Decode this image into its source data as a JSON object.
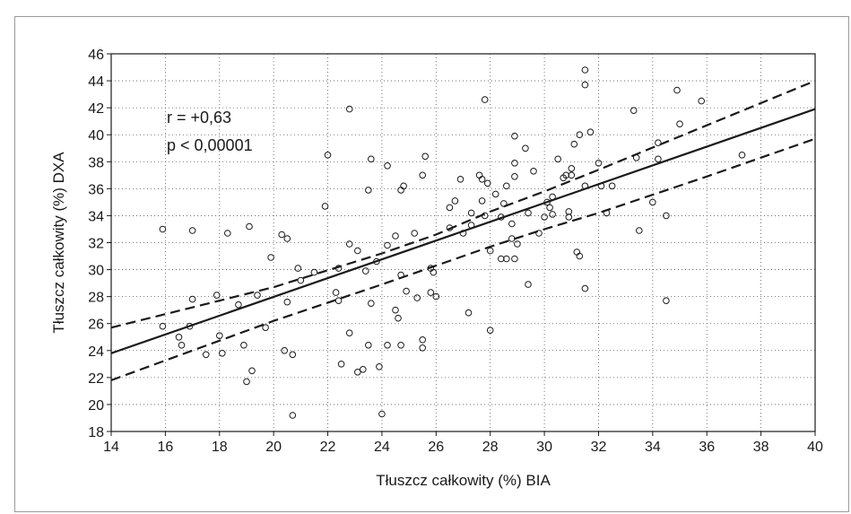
{
  "chart_data": {
    "type": "scatter",
    "xlabel": "Tłuszcz całkowity (%) BIA",
    "ylabel": "Tłuszcz całkowity (%) DXA",
    "xlim": [
      14,
      40
    ],
    "ylim": [
      18,
      46
    ],
    "xticks": [
      "14",
      "16",
      "18",
      "20",
      "22",
      "24",
      "26",
      "28",
      "30",
      "32",
      "34",
      "36",
      "38",
      "40"
    ],
    "yticks": [
      "18",
      "20",
      "22",
      "24",
      "26",
      "28",
      "30",
      "32",
      "34",
      "36",
      "38",
      "40",
      "42",
      "44",
      "46"
    ],
    "grid": true,
    "annotations": [
      "r = +0,63",
      "p < 0,00001"
    ],
    "regression": {
      "x": [
        14,
        40
      ],
      "y": [
        23.8,
        41.9
      ]
    },
    "ci_upper": {
      "x": [
        14,
        20,
        24,
        26,
        28,
        30,
        32,
        36,
        40
      ],
      "y": [
        25.7,
        28.7,
        31.2,
        32.6,
        34.3,
        35.8,
        37.4,
        40.7,
        44.0
      ]
    },
    "ci_lower": {
      "x": [
        14,
        20,
        24,
        26,
        28,
        30,
        32,
        36,
        40
      ],
      "y": [
        21.8,
        26.2,
        28.9,
        30.3,
        31.7,
        33.0,
        34.2,
        36.9,
        39.7
      ]
    },
    "points": [
      [
        15.9,
        33.0
      ],
      [
        15.9,
        25.8
      ],
      [
        16.5,
        25.0
      ],
      [
        16.6,
        24.4
      ],
      [
        16.9,
        25.8
      ],
      [
        17.0,
        32.9
      ],
      [
        17.0,
        27.8
      ],
      [
        17.5,
        23.7
      ],
      [
        17.9,
        28.1
      ],
      [
        18.0,
        25.1
      ],
      [
        18.1,
        23.8
      ],
      [
        18.3,
        32.7
      ],
      [
        18.7,
        27.4
      ],
      [
        18.9,
        24.4
      ],
      [
        19.0,
        21.7
      ],
      [
        19.1,
        33.2
      ],
      [
        19.2,
        22.5
      ],
      [
        19.4,
        28.1
      ],
      [
        19.7,
        25.7
      ],
      [
        19.9,
        30.9
      ],
      [
        20.3,
        32.6
      ],
      [
        20.4,
        24.0
      ],
      [
        20.5,
        32.3
      ],
      [
        20.5,
        27.6
      ],
      [
        20.7,
        23.7
      ],
      [
        20.7,
        19.2
      ],
      [
        20.9,
        30.1
      ],
      [
        21.0,
        29.2
      ],
      [
        21.5,
        29.8
      ],
      [
        21.9,
        34.7
      ],
      [
        22.0,
        38.5
      ],
      [
        22.3,
        28.3
      ],
      [
        22.4,
        27.7
      ],
      [
        22.5,
        23.0
      ],
      [
        22.4,
        30.1
      ],
      [
        22.8,
        25.3
      ],
      [
        22.8,
        31.9
      ],
      [
        22.8,
        41.9
      ],
      [
        23.1,
        31.4
      ],
      [
        23.1,
        22.4
      ],
      [
        23.3,
        22.6
      ],
      [
        23.4,
        29.9
      ],
      [
        23.5,
        35.9
      ],
      [
        23.5,
        24.4
      ],
      [
        23.6,
        27.5
      ],
      [
        23.6,
        38.2
      ],
      [
        23.8,
        30.6
      ],
      [
        23.9,
        22.8
      ],
      [
        24.0,
        19.3
      ],
      [
        24.2,
        37.7
      ],
      [
        24.2,
        31.8
      ],
      [
        24.2,
        24.4
      ],
      [
        24.5,
        32.5
      ],
      [
        24.5,
        27.0
      ],
      [
        24.6,
        26.4
      ],
      [
        24.7,
        35.9
      ],
      [
        24.7,
        29.6
      ],
      [
        24.7,
        24.4
      ],
      [
        24.8,
        36.2
      ],
      [
        24.9,
        28.4
      ],
      [
        25.2,
        32.7
      ],
      [
        25.3,
        27.9
      ],
      [
        25.5,
        37.0
      ],
      [
        25.5,
        24.2
      ],
      [
        25.5,
        24.8
      ],
      [
        25.6,
        38.4
      ],
      [
        25.8,
        30.1
      ],
      [
        25.8,
        28.3
      ],
      [
        25.9,
        29.8
      ],
      [
        26.0,
        28.0
      ],
      [
        26.5,
        33.1
      ],
      [
        26.5,
        34.6
      ],
      [
        26.7,
        35.1
      ],
      [
        26.9,
        36.7
      ],
      [
        27.0,
        32.7
      ],
      [
        27.2,
        26.8
      ],
      [
        27.3,
        33.3
      ],
      [
        27.3,
        34.2
      ],
      [
        27.6,
        37.0
      ],
      [
        27.7,
        36.7
      ],
      [
        27.7,
        35.1
      ],
      [
        27.8,
        42.6
      ],
      [
        27.8,
        34.0
      ],
      [
        27.9,
        36.4
      ],
      [
        28.0,
        25.5
      ],
      [
        28.0,
        31.4
      ],
      [
        28.2,
        35.6
      ],
      [
        28.4,
        33.9
      ],
      [
        28.4,
        30.8
      ],
      [
        28.5,
        34.9
      ],
      [
        28.6,
        36.2
      ],
      [
        28.6,
        30.8
      ],
      [
        28.8,
        33.4
      ],
      [
        28.8,
        32.3
      ],
      [
        28.9,
        30.8
      ],
      [
        28.9,
        39.9
      ],
      [
        28.9,
        37.9
      ],
      [
        28.9,
        36.9
      ],
      [
        29.0,
        31.9
      ],
      [
        29.3,
        39.0
      ],
      [
        29.4,
        34.2
      ],
      [
        29.4,
        28.9
      ],
      [
        29.6,
        37.3
      ],
      [
        29.8,
        32.7
      ],
      [
        30.0,
        33.9
      ],
      [
        30.1,
        35.0
      ],
      [
        30.2,
        34.6
      ],
      [
        30.3,
        34.1
      ],
      [
        30.3,
        35.4
      ],
      [
        30.5,
        38.2
      ],
      [
        30.7,
        36.8
      ],
      [
        30.8,
        37.0
      ],
      [
        30.9,
        33.9
      ],
      [
        30.9,
        34.3
      ],
      [
        31.0,
        37.0
      ],
      [
        31.0,
        37.5
      ],
      [
        31.1,
        39.3
      ],
      [
        31.2,
        31.3
      ],
      [
        31.3,
        31.0
      ],
      [
        31.3,
        40.0
      ],
      [
        31.5,
        28.6
      ],
      [
        31.5,
        44.8
      ],
      [
        31.5,
        43.7
      ],
      [
        31.5,
        36.2
      ],
      [
        31.7,
        40.2
      ],
      [
        32.0,
        37.9
      ],
      [
        32.1,
        36.2
      ],
      [
        32.3,
        34.2
      ],
      [
        32.5,
        36.2
      ],
      [
        33.3,
        41.8
      ],
      [
        33.4,
        38.3
      ],
      [
        33.5,
        32.9
      ],
      [
        34.0,
        35.0
      ],
      [
        34.2,
        38.2
      ],
      [
        34.2,
        39.4
      ],
      [
        34.5,
        34.0
      ],
      [
        34.5,
        27.7
      ],
      [
        34.9,
        43.3
      ],
      [
        35.0,
        40.8
      ],
      [
        35.8,
        42.5
      ],
      [
        37.3,
        38.5
      ]
    ]
  }
}
